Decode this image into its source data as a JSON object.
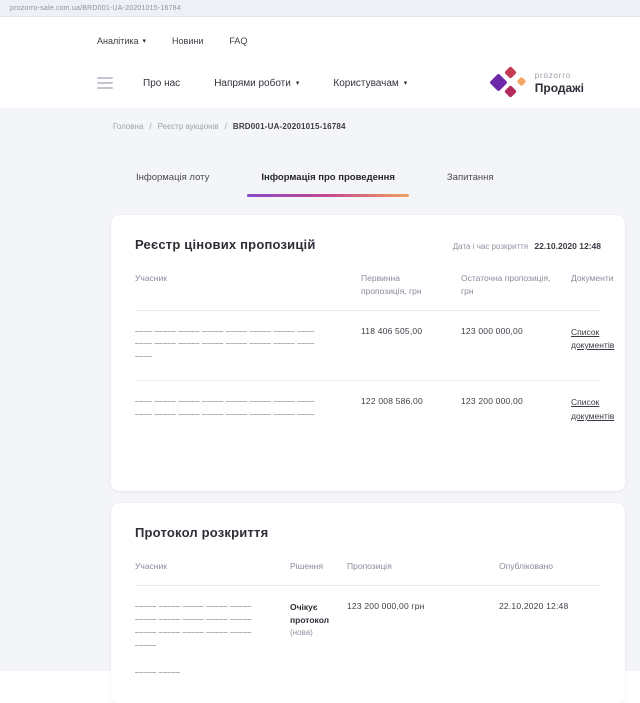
{
  "browser_bar": {
    "url": "prozorro-sale.com.ua/BRD001-UA-20201015-16784"
  },
  "utility_nav": {
    "analytics": "Аналітика",
    "news": "Новини",
    "faq": "FAQ",
    "caret": "▾"
  },
  "main_nav": {
    "about": "Про нас",
    "directions": "Напрями роботи",
    "users": "Користувачам",
    "caret": "▾"
  },
  "logo": {
    "line1": "prozorro",
    "line2": "Продажі"
  },
  "breadcrumb": {
    "home": "Головна",
    "separator": "/",
    "registry": "Реєстр аукціонів",
    "current": "BRD001-UA-20201015-16784"
  },
  "tabs": {
    "lot": "Інформація лоту",
    "conduct": "Інформація про проведення",
    "questions": "Запитання"
  },
  "bids_card": {
    "title": "Реєстр цінових пропозицій",
    "disclosure_label": "Дата і час розкриття",
    "disclosure_value": "22.10.2020 12:48",
    "headers": {
      "participant": "Учасник",
      "initial": "Первинна пропозиція, грн",
      "final": "Остаточна пропозиція, грн",
      "documents": "Документи"
    },
    "rows": [
      {
        "name_line1": "–––– ––––– ––––– ––––– ––––– ––––– ––––– ––––",
        "name_line2": "–––– ––––– ––––– ––––– ––––– ––––– ––––– ––––",
        "name_line3": "––––",
        "initial": "118 406 505,00",
        "final": "123 000 000,00",
        "documents_link": "Список документів"
      },
      {
        "name_line1": "–––– ––––– ––––– ––––– ––––– ––––– ––––– ––––",
        "name_line2": "–––– ––––– ––––– ––––– ––––– ––––– ––––– ––––",
        "initial": "122 008 586,00",
        "final": "123 200 000,00",
        "documents_link": "Список документів"
      }
    ]
  },
  "protocol_card": {
    "title": "Протокол розкриття",
    "headers": {
      "participant": "Учасник",
      "decision": "Рішення",
      "proposal": "Пропозиція",
      "published": "Опубліковано"
    },
    "rows": [
      {
        "name_line1": "––––– ––––– ––––– ––––– –––––",
        "name_line2": "––––– ––––– ––––– ––––– –––––",
        "name_line3": "––––– ––––– ––––– ––––– –––––",
        "name_line4": "–––––",
        "extra_line": "––––– –––––",
        "decision": "Очікує протокол",
        "decision_note": "(нова)",
        "proposal": "123 200 000,00 грн",
        "published": "22.10.2020 12:48"
      }
    ]
  },
  "colors": {
    "accent_purple": "#6d28a9",
    "accent_red": "#c43a52",
    "accent_magenta": "#b02a5b",
    "accent_orange": "#f2a66a",
    "tab_gradient_start": "#8a4bc9",
    "tab_gradient_end": "#f0a15e",
    "page_background": "#f4f5f8"
  }
}
